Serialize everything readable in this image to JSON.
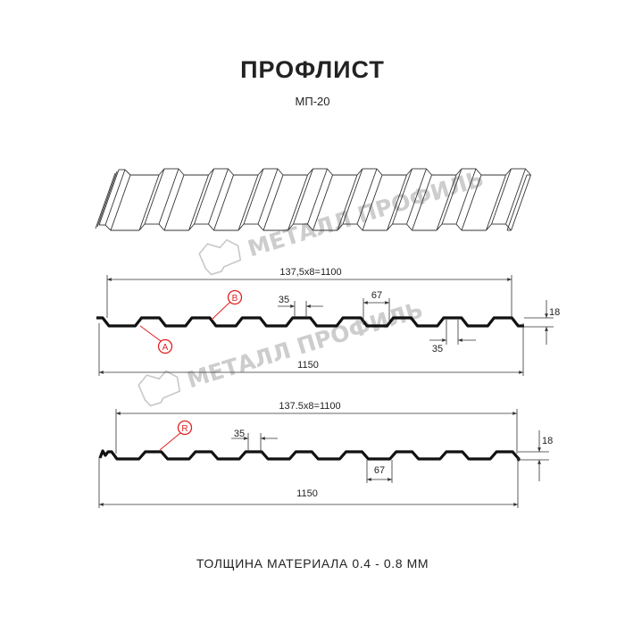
{
  "header": {
    "title": "ПРОФЛИСТ",
    "subtitle": "МП-20"
  },
  "watermark": {
    "text": "МЕТАЛЛ ПРОФИЛЬ"
  },
  "profile_1": {
    "pitch_label": "137,5x8=1100",
    "width_label": "1150",
    "top_width_label": "35",
    "valley_width_label": "67",
    "bottom_width_label": "35",
    "height_label": "18",
    "callout_a": "A",
    "callout_b": "B"
  },
  "profile_2": {
    "pitch_label": "137.5x8=1100",
    "width_label": "1150",
    "top_width_label": "35",
    "valley_width_label": "67",
    "height_label": "18",
    "callout_r": "R"
  },
  "footer": {
    "thickness": "ТОЛЩИНА МАТЕРИАЛА 0.4 - 0.8 ММ"
  },
  "colors": {
    "profile": "#111111",
    "callout": "#e41e1e",
    "watermark": "#bdbdbd"
  }
}
